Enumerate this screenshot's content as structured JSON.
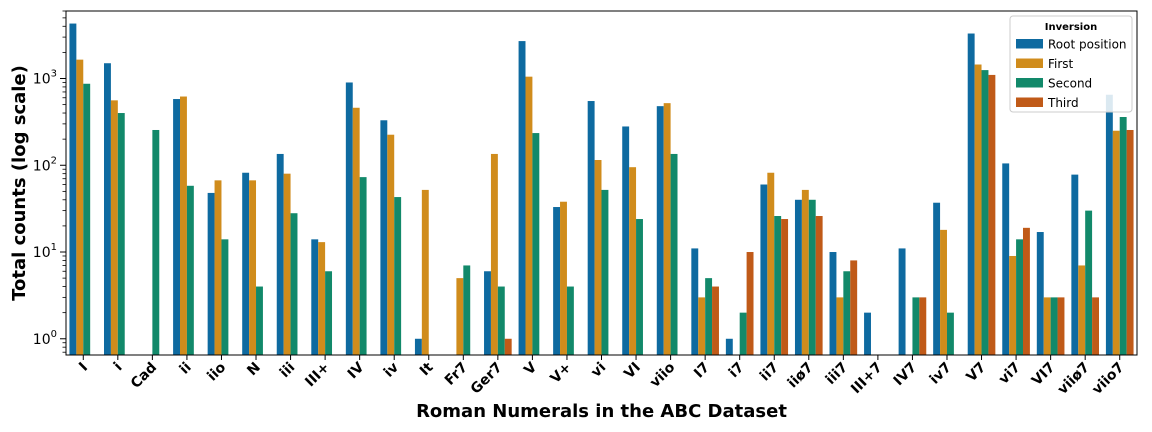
{
  "chart_data": {
    "type": "bar",
    "yscale": "log",
    "ylim": [
      0.65,
      6000
    ],
    "yticks": [
      {
        "value": 1,
        "base": "10",
        "exp": "0"
      },
      {
        "value": 10,
        "base": "10",
        "exp": "1"
      },
      {
        "value": 100,
        "base": "10",
        "exp": "2"
      },
      {
        "value": 1000,
        "base": "10",
        "exp": "3"
      }
    ],
    "xlabel": "Roman Numerals in the ABC Dataset",
    "ylabel": "Total counts (log scale)",
    "grid": false,
    "legend": {
      "title": "Inversion",
      "placement": "top-right"
    },
    "categories": [
      "I",
      "i",
      "Cad",
      "ii",
      "iio",
      "N",
      "iii",
      "III+",
      "IV",
      "iv",
      "It",
      "Fr7",
      "Ger7",
      "V",
      "V+",
      "vi",
      "VI",
      "viio",
      "I7",
      "i7",
      "ii7",
      "iiø7",
      "iii7",
      "III+7",
      "IV7",
      "iv7",
      "V7",
      "vi7",
      "VI7",
      "viiø7",
      "viio7"
    ],
    "series": [
      {
        "name": "Root position",
        "color": "#0e6aa0",
        "values": [
          4300,
          1500,
          null,
          580,
          48,
          82,
          135,
          14,
          900,
          330,
          1,
          null,
          6,
          2700,
          33,
          550,
          280,
          480,
          11,
          1,
          60,
          40,
          10,
          2,
          11,
          37,
          3300,
          105,
          17,
          78,
          650
        ]
      },
      {
        "name": "First",
        "color": "#d08c1c",
        "values": [
          1650,
          560,
          null,
          620,
          67,
          67,
          80,
          13,
          460,
          225,
          52,
          5,
          135,
          1050,
          38,
          115,
          95,
          520,
          3,
          null,
          82,
          52,
          3,
          null,
          null,
          18,
          1450,
          9,
          3,
          7,
          250
        ]
      },
      {
        "name": "Second",
        "color": "#12896a",
        "values": [
          870,
          400,
          255,
          58,
          14,
          4,
          28,
          6,
          73,
          43,
          null,
          7,
          4,
          235,
          4,
          52,
          24,
          135,
          5,
          2,
          26,
          40,
          6,
          null,
          3,
          2,
          1250,
          14,
          3,
          30,
          360
        ]
      },
      {
        "name": "Third",
        "color": "#c05a18",
        "values": [
          null,
          null,
          null,
          null,
          null,
          null,
          null,
          null,
          null,
          null,
          null,
          null,
          1,
          null,
          null,
          null,
          null,
          null,
          4,
          10,
          24,
          26,
          8,
          null,
          3,
          null,
          1100,
          19,
          3,
          3,
          255
        ]
      }
    ]
  }
}
